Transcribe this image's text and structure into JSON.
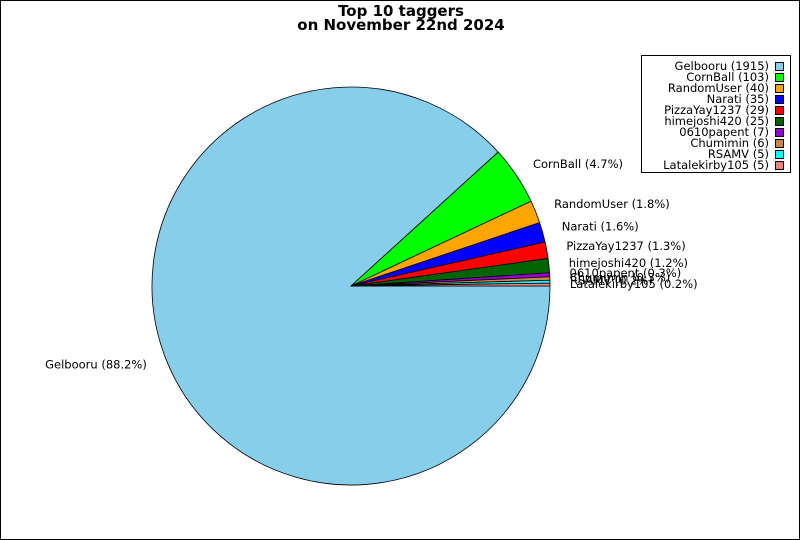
{
  "chart_data": {
    "type": "pie",
    "title_line1": "Top 10 taggers",
    "title_line2": "on November 22nd 2024",
    "slices": [
      {
        "name": "Gelbooru",
        "value": 1915,
        "pct_label": "Gelbooru (88.2%)",
        "legend": "Gelbooru (1915)",
        "color": "#87ceeb"
      },
      {
        "name": "CornBall",
        "value": 103,
        "pct_label": "CornBall (4.7%)",
        "legend": "CornBall (103)",
        "color": "#00ff00"
      },
      {
        "name": "RandomUser",
        "value": 40,
        "pct_label": "RandomUser (1.8%)",
        "legend": "RandomUser (40)",
        "color": "#ffa500"
      },
      {
        "name": "Narati",
        "value": 35,
        "pct_label": "Narati (1.6%)",
        "legend": "Narati (35)",
        "color": "#0000ff"
      },
      {
        "name": "PizzaYay1237",
        "value": 29,
        "pct_label": "PizzaYay1237 (1.3%)",
        "legend": "PizzaYay1237 (29)",
        "color": "#ff0000"
      },
      {
        "name": "himejoshi420",
        "value": 25,
        "pct_label": "himejoshi420 (1.2%)",
        "legend": "himejoshi420 (25)",
        "color": "#006400"
      },
      {
        "name": "0610papent",
        "value": 7,
        "pct_label": "0610papent (0.3%)",
        "legend": "0610papent (7)",
        "color": "#9400d3"
      },
      {
        "name": "Chumimin",
        "value": 6,
        "pct_label": "Chumimin (0.3%)",
        "legend": "Chumimin (6)",
        "color": "#cd853f"
      },
      {
        "name": "RSAMV",
        "value": 5,
        "pct_label": "RSAMV (0.2%)",
        "legend": "RSAMV (5)",
        "color": "#00ffff"
      },
      {
        "name": "Latalekirby105",
        "value": 5,
        "pct_label": "Latalekirby105 (0.2%)",
        "legend": "Latalekirby105 (5)",
        "color": "#f08080"
      }
    ],
    "start_angle_deg": 0,
    "direction": "clockwise",
    "legend_position": "top-right"
  }
}
